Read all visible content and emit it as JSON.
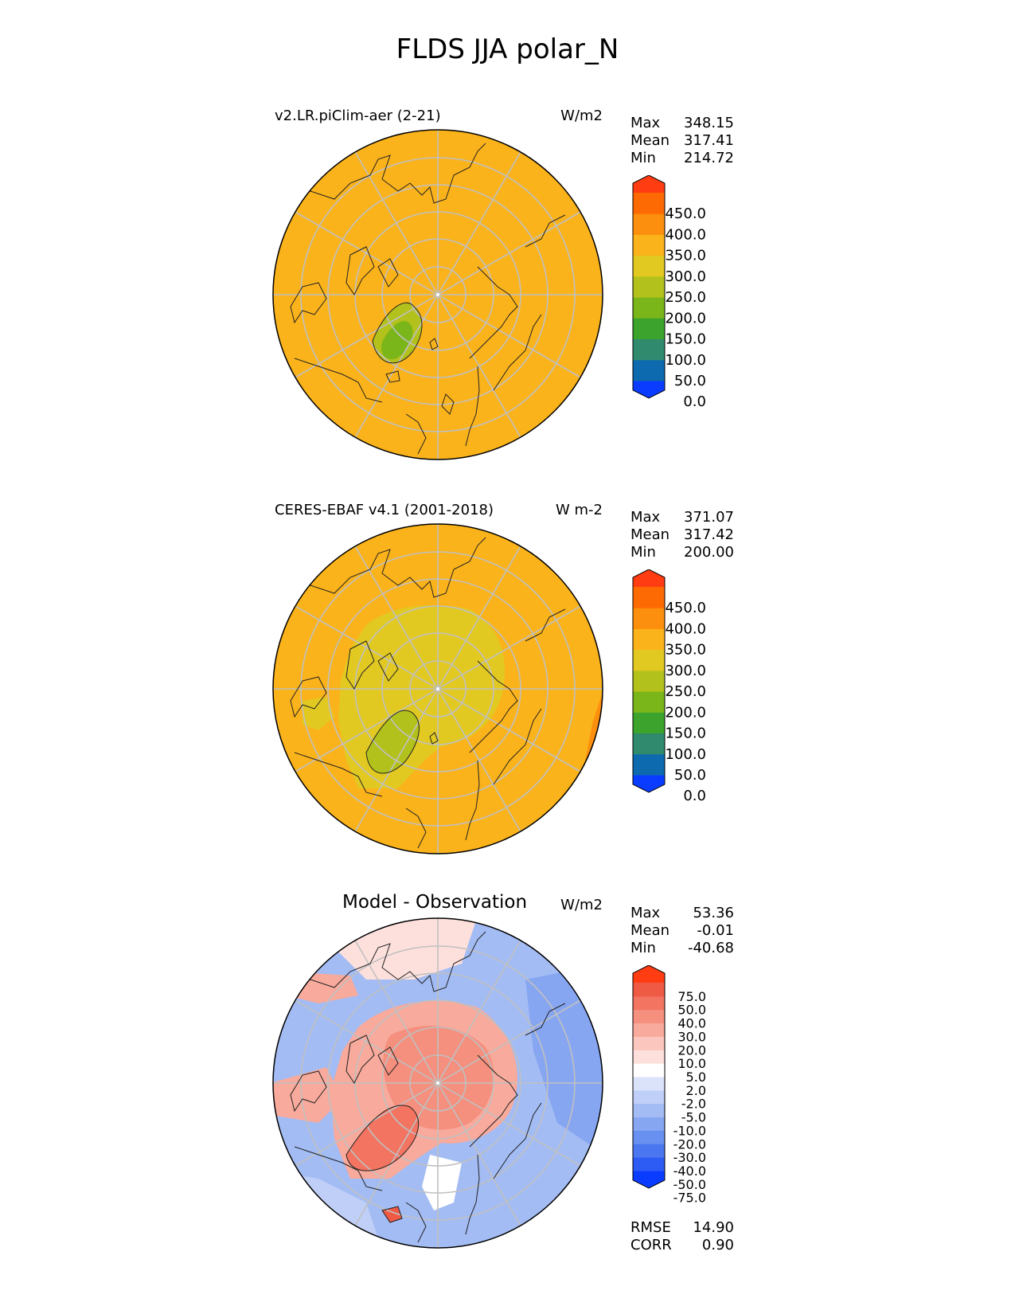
{
  "main_title": "FLDS JJA polar_N",
  "panels": [
    {
      "title": "v2.LR.piClim-aer (2-21)",
      "units": "W/m2",
      "stats": [
        {
          "label": "Max",
          "value": "348.15"
        },
        {
          "label": "Mean",
          "value": "317.41"
        },
        {
          "label": "Min",
          "value": "214.72"
        }
      ]
    },
    {
      "title": "CERES-EBAF v4.1 (2001-2018)",
      "units": "W m-2",
      "stats": [
        {
          "label": "Max",
          "value": "371.07"
        },
        {
          "label": "Mean",
          "value": "317.42"
        },
        {
          "label": "Min",
          "value": "200.00"
        }
      ]
    },
    {
      "title": "Model - Observation",
      "units": "W/m2",
      "stats": [
        {
          "label": "Max",
          "value": "53.36"
        },
        {
          "label": "Mean",
          "value": "-0.01"
        },
        {
          "label": "Min",
          "value": "-40.68"
        }
      ],
      "bottom_stats": [
        {
          "label": "RMSE",
          "value": "14.90"
        },
        {
          "label": "CORR",
          "value": "0.90"
        }
      ]
    }
  ],
  "colorbar_main": {
    "colors": [
      "#0a3cff",
      "#0d6aaf",
      "#2f8a6e",
      "#3ca32c",
      "#7ab519",
      "#b3c11c",
      "#e2c922",
      "#fbb31b",
      "#fc8f0d",
      "#fd6a03",
      "#ff3c12"
    ],
    "labels": [
      "450.0",
      "400.0",
      "350.0",
      "300.0",
      "250.0",
      "200.0",
      "150.0",
      "100.0",
      "50.0",
      "0.0"
    ]
  },
  "colorbar_diff": {
    "colors": [
      "#0a3cff",
      "#2d5cf5",
      "#4a76f0",
      "#6890f0",
      "#87a6f2",
      "#a3bcf4",
      "#bfcff7",
      "#dae3fa",
      "#ffffff",
      "#fde0dc",
      "#fbc6bd",
      "#f8aa9c",
      "#f58f7e",
      "#f27461",
      "#ef5a45",
      "#ff3c12"
    ],
    "labels": [
      "75.0",
      "50.0",
      "40.0",
      "30.0",
      "20.0",
      "10.0",
      "5.0",
      "2.0",
      "-2.0",
      "-5.0",
      "-10.0",
      "-20.0",
      "-30.0",
      "-40.0",
      "-50.0",
      "-75.0"
    ]
  }
}
